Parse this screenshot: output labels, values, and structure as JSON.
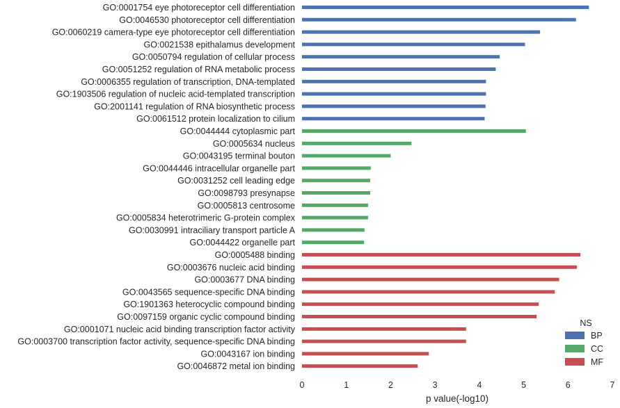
{
  "chart_data": {
    "type": "bar",
    "orientation": "horizontal",
    "xlabel": "p value(-log10)",
    "ylabel": "",
    "xlim": [
      0,
      7
    ],
    "xticks": [
      0,
      1,
      2,
      3,
      4,
      5,
      6,
      7
    ],
    "grid": false,
    "legend": {
      "title": "NS",
      "placement": "bottom-right",
      "entries": [
        {
          "name": "BP",
          "color": "#4c72b0"
        },
        {
          "name": "CC",
          "color": "#55a868"
        },
        {
          "name": "MF",
          "color": "#c44e52"
        }
      ]
    },
    "bars": [
      {
        "label": "GO:0001754 eye photoreceptor cell differentiation",
        "value": 6.47,
        "ns": "BP"
      },
      {
        "label": "GO:0046530 photoreceptor cell differentiation",
        "value": 6.18,
        "ns": "BP"
      },
      {
        "label": "GO:0060219 camera-type eye photoreceptor cell differentiation",
        "value": 5.37,
        "ns": "BP"
      },
      {
        "label": "GO:0021538 epithalamus development",
        "value": 5.03,
        "ns": "BP"
      },
      {
        "label": "GO:0050794 regulation of cellular process",
        "value": 4.46,
        "ns": "BP"
      },
      {
        "label": "GO:0051252 regulation of RNA metabolic process",
        "value": 4.37,
        "ns": "BP"
      },
      {
        "label": "GO:0006355 regulation of transcription, DNA-templated",
        "value": 4.15,
        "ns": "BP"
      },
      {
        "label": "GO:1903506 regulation of nucleic acid-templated transcription",
        "value": 4.15,
        "ns": "BP"
      },
      {
        "label": "GO:2001141 regulation of RNA biosynthetic process",
        "value": 4.14,
        "ns": "BP"
      },
      {
        "label": "GO:0061512 protein localization to cilium",
        "value": 4.12,
        "ns": "BP"
      },
      {
        "label": "GO:0044444 cytoplasmic part",
        "value": 5.05,
        "ns": "CC"
      },
      {
        "label": "GO:0005634 nucleus",
        "value": 2.47,
        "ns": "CC"
      },
      {
        "label": "GO:0043195 terminal bouton",
        "value": 2.0,
        "ns": "CC"
      },
      {
        "label": "GO:0044446 intracellular organelle part",
        "value": 1.55,
        "ns": "CC"
      },
      {
        "label": "GO:0031252 cell leading edge",
        "value": 1.54,
        "ns": "CC"
      },
      {
        "label": "GO:0098793 presynapse",
        "value": 1.54,
        "ns": "CC"
      },
      {
        "label": "GO:0005813 centrosome",
        "value": 1.49,
        "ns": "CC"
      },
      {
        "label": "GO:0005834 heterotrimeric G-protein complex",
        "value": 1.49,
        "ns": "CC"
      },
      {
        "label": "GO:0030991 intraciliary transport particle A",
        "value": 1.41,
        "ns": "CC"
      },
      {
        "label": "GO:0044422 organelle part",
        "value": 1.4,
        "ns": "CC"
      },
      {
        "label": "GO:0005488 binding",
        "value": 6.28,
        "ns": "MF"
      },
      {
        "label": "GO:0003676 nucleic acid binding",
        "value": 6.2,
        "ns": "MF"
      },
      {
        "label": "GO:0003677 DNA binding",
        "value": 5.8,
        "ns": "MF"
      },
      {
        "label": "GO:0043565 sequence-specific DNA binding",
        "value": 5.7,
        "ns": "MF"
      },
      {
        "label": "GO:1901363 heterocyclic compound binding",
        "value": 5.34,
        "ns": "MF"
      },
      {
        "label": "GO:0097159 organic cyclic compound binding",
        "value": 5.29,
        "ns": "MF"
      },
      {
        "label": "GO:0001071 nucleic acid binding transcription factor activity",
        "value": 3.7,
        "ns": "MF"
      },
      {
        "label": "GO:0003700 transcription factor activity, sequence-specific DNA binding",
        "value": 3.7,
        "ns": "MF"
      },
      {
        "label": "GO:0043167 ion binding",
        "value": 2.86,
        "ns": "MF"
      },
      {
        "label": "GO:0046872 metal ion binding",
        "value": 2.61,
        "ns": "MF"
      }
    ]
  }
}
